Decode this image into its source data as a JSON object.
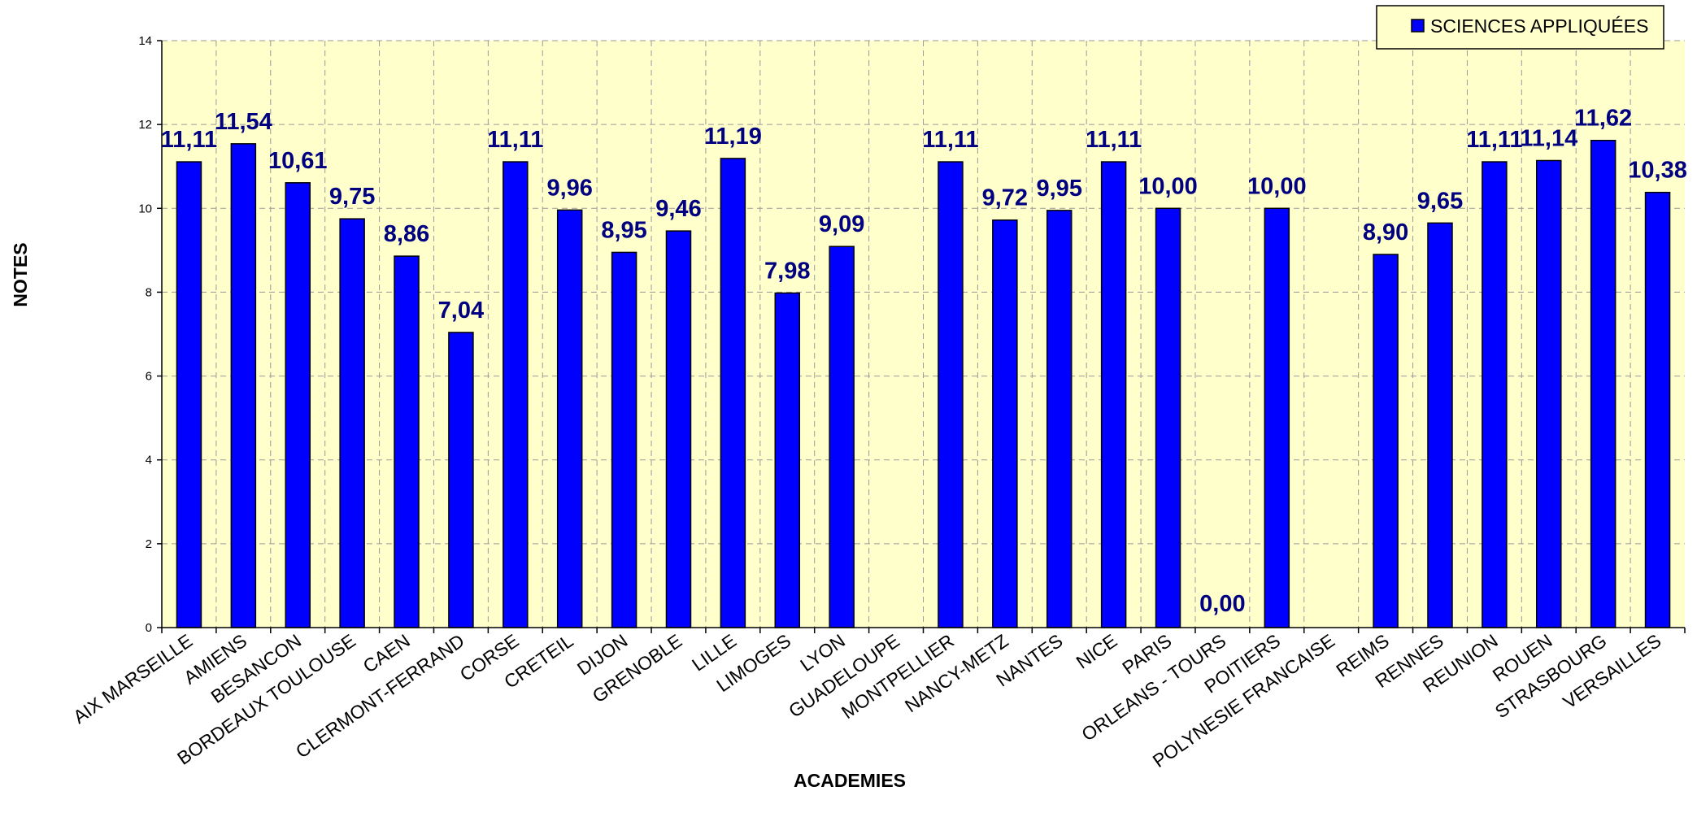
{
  "chart_data": {
    "type": "bar",
    "categories": [
      "AIX MARSEILLE",
      "AMIENS",
      "BESANCON",
      "BORDEAUX TOULOUSE",
      "CAEN",
      "CLERMONT-FERRAND",
      "CORSE",
      "CRETEIL",
      "DIJON",
      "GRENOBLE",
      "LILLE",
      "LIMOGES",
      "LYON",
      "GUADELOUPE",
      "MONTPELLIER",
      "NANCY-METZ",
      "NANTES",
      "NICE",
      "PARIS",
      "ORLEANS - TOURS",
      "POITIERS",
      "POLYNESIE FRANCAISE",
      "REIMS",
      "RENNES",
      "REUNION",
      "ROUEN",
      "STRASBOURG",
      "VERSAILLES"
    ],
    "series": [
      {
        "name": "SCIENCES APPLIQUÉES",
        "values": [
          11.11,
          11.54,
          10.61,
          9.75,
          8.86,
          7.04,
          11.11,
          9.96,
          8.95,
          9.46,
          11.19,
          7.98,
          9.09,
          null,
          11.11,
          9.72,
          9.95,
          11.11,
          10.0,
          0.0,
          10.0,
          null,
          8.9,
          9.65,
          11.11,
          11.14,
          11.62,
          10.38
        ],
        "labels": [
          "11,11",
          "11,54",
          "10,61",
          "9,75",
          "8,86",
          "7,04",
          "11,11",
          "9,96",
          "8,95",
          "9,46",
          "11,19",
          "7,98",
          "9,09",
          "",
          "11,11",
          "9,72",
          "9,95",
          "11,11",
          "10,00",
          "0,00",
          "10,00",
          "",
          "8,90",
          "9,65",
          "11,11",
          "11,14",
          "11,62",
          "10,38"
        ]
      }
    ],
    "xlabel": "ACADEMIES",
    "ylabel": "NOTES",
    "ylim": [
      0,
      14
    ],
    "yticks": [
      "0",
      "2",
      "4",
      "6",
      "8",
      "10",
      "12",
      "14"
    ],
    "grid": true,
    "legend_position": "top-right",
    "colors": {
      "bar_fill": "#0000ff",
      "bar_stroke": "#000000",
      "plot_background": "#ffffcc",
      "data_label": "#000080",
      "grid": "#9a9a9a"
    }
  }
}
